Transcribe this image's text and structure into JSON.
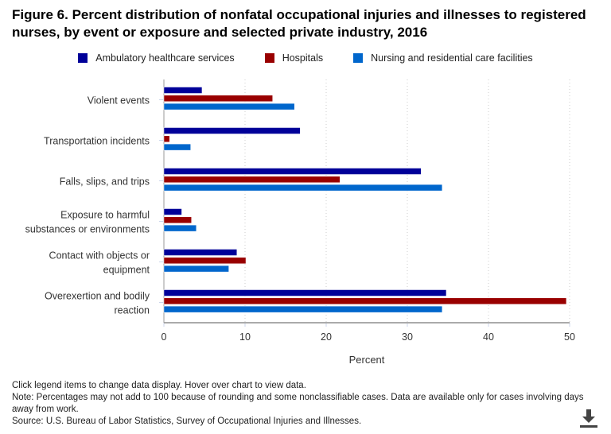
{
  "title": "Figure 6. Percent distribution of nonfatal occupational injuries and illnesses to registered nurses, by event or exposure and selected private industry, 2016",
  "chart_data": {
    "type": "bar",
    "orientation": "horizontal",
    "title": "Figure 6. Percent distribution of nonfatal occupational injuries and illnesses to registered nurses, by event or exposure and selected private industry, 2016",
    "xlabel": "Percent",
    "xlim": [
      0,
      50
    ],
    "ticks": [
      0,
      10,
      20,
      30,
      40,
      50
    ],
    "grid": true,
    "legend_position": "top",
    "categories": [
      [
        "Violent events"
      ],
      [
        "Transportation incidents"
      ],
      [
        "Falls, slips, and trips"
      ],
      [
        "Exposure to harmful",
        "substances or environments"
      ],
      [
        "Contact with objects or",
        "equipment"
      ],
      [
        "Overexertion and bodily",
        "reaction"
      ]
    ],
    "series": [
      {
        "name": "Ambulatory healthcare services",
        "color": "#000099",
        "values": [
          4.7,
          16.8,
          31.7,
          2.2,
          9.0,
          34.8
        ]
      },
      {
        "name": "Hospitals",
        "color": "#990000",
        "values": [
          13.4,
          0.7,
          21.7,
          3.4,
          10.1,
          49.6
        ]
      },
      {
        "name": "Nursing and residential care facilities",
        "color": "#0066cc",
        "values": [
          16.1,
          3.3,
          34.3,
          4.0,
          8.0,
          34.3
        ]
      }
    ]
  },
  "notes": [
    "Click legend items to change data display. Hover over chart to view data.",
    "Note: Percentages may not add to 100 because of rounding and some nonclassifiable cases. Data are available only for cases involving days away from work.",
    "Source: U.S. Bureau of Labor Statistics, Survey of Occupational Injuries and Illnesses."
  ],
  "download_icon": "download-icon"
}
